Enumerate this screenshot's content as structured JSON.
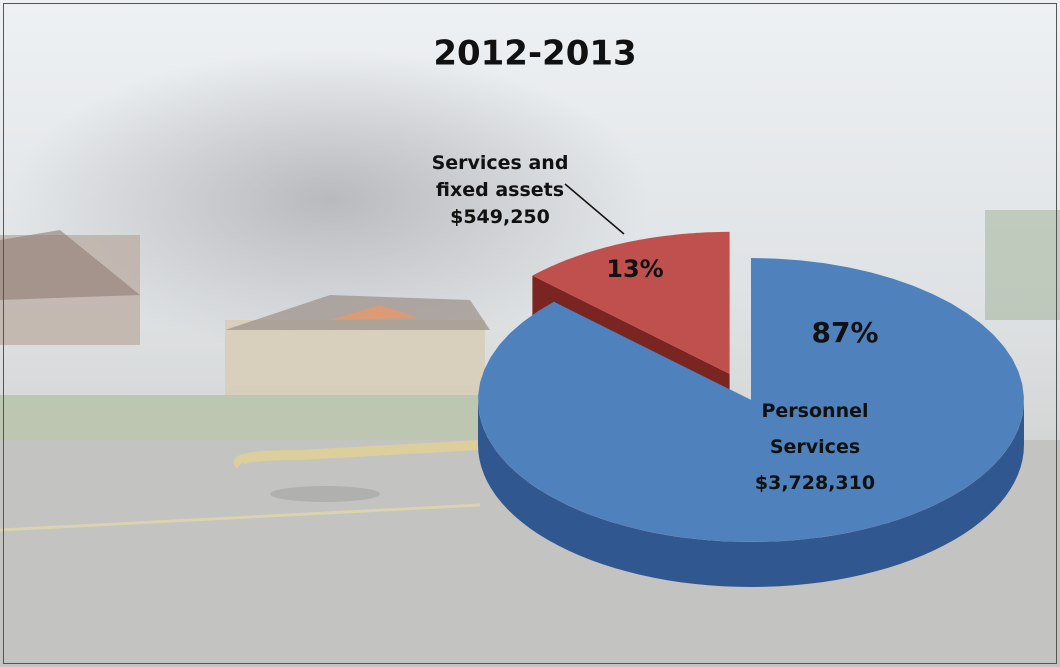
{
  "chart_data": {
    "type": "pie3d",
    "title": "2012-2013",
    "categories": [
      "Personnel Services",
      "Services and fixed assets"
    ],
    "values": [
      3728310,
      549250
    ],
    "value_labels": [
      "$3,728,310",
      "$549,250"
    ],
    "percents": [
      87,
      13
    ],
    "percent_labels": [
      "87%",
      "13%"
    ],
    "colors": [
      "#4f81bd",
      "#c0504d"
    ],
    "side_colors": [
      "#30578f",
      "#7a2522"
    ],
    "exploded": [
      false,
      true
    ]
  }
}
